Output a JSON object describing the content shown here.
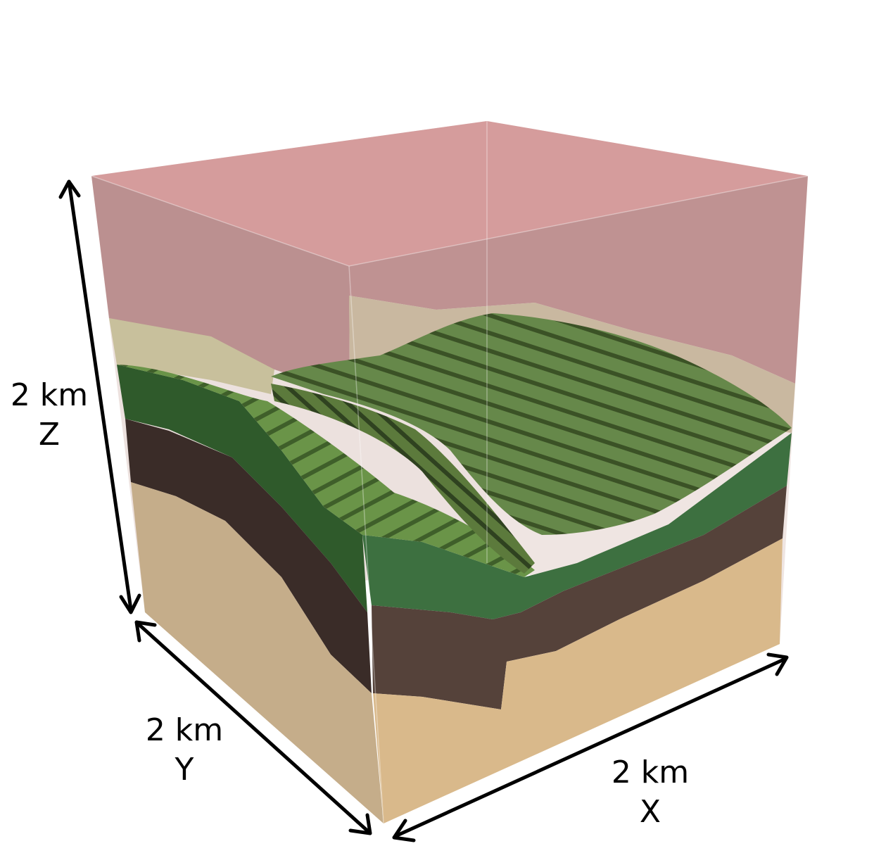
{
  "axes": {
    "z": {
      "length": "2 km",
      "name": "Z"
    },
    "y": {
      "length": "2 km",
      "name": "Y"
    },
    "x": {
      "length": "2 km",
      "name": "X"
    }
  },
  "layers": [
    {
      "name": "top-layer",
      "color": "#d59c9c"
    },
    {
      "name": "upper-light-layer",
      "color": "#c8c09c"
    },
    {
      "name": "green-layer",
      "color": "#4f8a3e"
    },
    {
      "name": "dark-brown-layer",
      "color": "#4a3832"
    },
    {
      "name": "sand-layer",
      "color": "#d9b98b"
    }
  ]
}
